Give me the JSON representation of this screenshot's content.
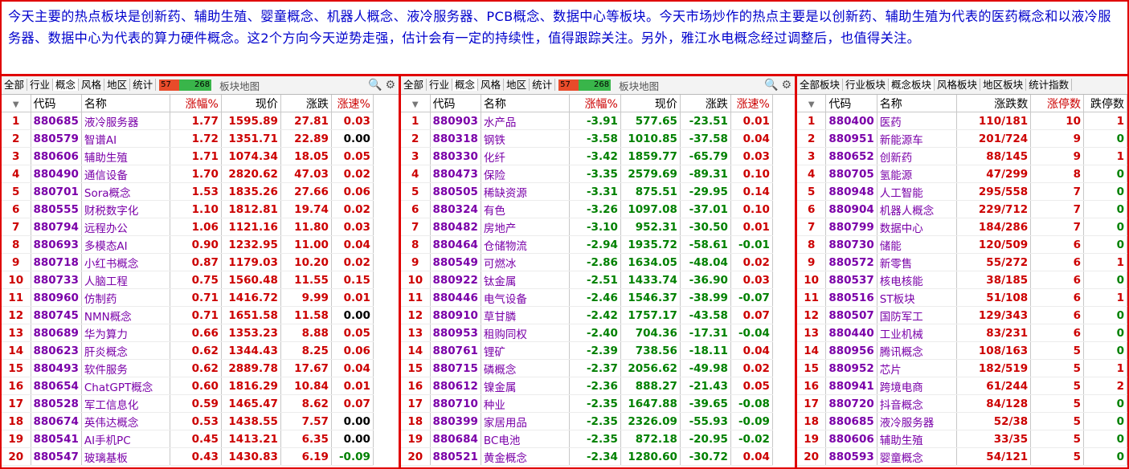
{
  "banner": {
    "text": "今天主要的热点板块是创新药、辅助生殖、婴童概念、机器人概念、液冷服务器、PCB概念、数据中心等板块。今天市场炒作的热点主要是以创新药、辅助生殖为代表的医药概念和以液冷服务器、数据中心为代表的算力硬件概念。这2个方向今天逆势走强，估计会有一定的持续性，值得跟踪关注。另外，雅江水电概念经过调整后，也值得关注。"
  },
  "panel1": {
    "tabs": [
      "全部",
      "行业",
      "概念",
      "风格",
      "地区",
      "统计"
    ],
    "active_tab": 2,
    "mini_red": "57",
    "mini_green": "268",
    "map_label": "板块地图",
    "headers": [
      "",
      "代码",
      "名称",
      "涨幅%",
      "现价",
      "涨跌",
      "涨速%"
    ],
    "rows": [
      [
        "1",
        "880685",
        "液冷服务器",
        "1.77",
        "1595.89",
        "27.81",
        "0.03"
      ],
      [
        "2",
        "880579",
        "智谱AI",
        "1.72",
        "1351.71",
        "22.89",
        "0.00"
      ],
      [
        "3",
        "880606",
        "辅助生殖",
        "1.71",
        "1074.34",
        "18.05",
        "0.05"
      ],
      [
        "4",
        "880490",
        "通信设备",
        "1.70",
        "2820.62",
        "47.03",
        "0.02"
      ],
      [
        "5",
        "880701",
        "Sora概念",
        "1.53",
        "1835.26",
        "27.66",
        "0.06"
      ],
      [
        "6",
        "880555",
        "财税数字化",
        "1.10",
        "1812.81",
        "19.74",
        "0.02"
      ],
      [
        "7",
        "880794",
        "远程办公",
        "1.06",
        "1121.16",
        "11.80",
        "0.03"
      ],
      [
        "8",
        "880693",
        "多模态AI",
        "0.90",
        "1232.95",
        "11.00",
        "0.04"
      ],
      [
        "9",
        "880718",
        "小红书概念",
        "0.87",
        "1179.03",
        "10.20",
        "0.02"
      ],
      [
        "10",
        "880733",
        "人脑工程",
        "0.75",
        "1560.48",
        "11.55",
        "0.15"
      ],
      [
        "11",
        "880960",
        "仿制药",
        "0.71",
        "1416.72",
        "9.99",
        "0.01"
      ],
      [
        "12",
        "880745",
        "NMN概念",
        "0.71",
        "1651.58",
        "11.58",
        "0.00"
      ],
      [
        "13",
        "880689",
        "华为算力",
        "0.66",
        "1353.23",
        "8.88",
        "0.05"
      ],
      [
        "14",
        "880623",
        "肝炎概念",
        "0.62",
        "1344.43",
        "8.25",
        "0.06"
      ],
      [
        "15",
        "880493",
        "软件服务",
        "0.62",
        "2889.78",
        "17.67",
        "0.04"
      ],
      [
        "16",
        "880654",
        "ChatGPT概念",
        "0.60",
        "1816.29",
        "10.84",
        "0.01"
      ],
      [
        "17",
        "880528",
        "军工信息化",
        "0.59",
        "1465.47",
        "8.62",
        "0.07"
      ],
      [
        "18",
        "880674",
        "英伟达概念",
        "0.53",
        "1438.55",
        "7.57",
        "0.00"
      ],
      [
        "19",
        "880541",
        "AI手机PC",
        "0.45",
        "1413.21",
        "6.35",
        "0.00"
      ],
      [
        "20",
        "880547",
        "玻璃基板",
        "0.43",
        "1430.83",
        "6.19",
        "-0.09"
      ]
    ]
  },
  "panel2": {
    "tabs": [
      "全部",
      "行业",
      "概念",
      "风格",
      "地区",
      "统计"
    ],
    "active_tab": 2,
    "mini_red": "57",
    "mini_green": "268",
    "map_label": "板块地图",
    "headers": [
      "",
      "代码",
      "名称",
      "涨幅%",
      "现价",
      "涨跌",
      "涨速%"
    ],
    "rows": [
      [
        "1",
        "880903",
        "水产品",
        "-3.91",
        "577.65",
        "-23.51",
        "0.01"
      ],
      [
        "2",
        "880318",
        "钢铁",
        "-3.58",
        "1010.85",
        "-37.58",
        "0.04"
      ],
      [
        "3",
        "880330",
        "化纤",
        "-3.42",
        "1859.77",
        "-65.79",
        "0.03"
      ],
      [
        "4",
        "880473",
        "保险",
        "-3.35",
        "2579.69",
        "-89.31",
        "0.10"
      ],
      [
        "5",
        "880505",
        "稀缺资源",
        "-3.31",
        "875.51",
        "-29.95",
        "0.14"
      ],
      [
        "6",
        "880324",
        "有色",
        "-3.26",
        "1097.08",
        "-37.01",
        "0.10"
      ],
      [
        "7",
        "880482",
        "房地产",
        "-3.10",
        "952.31",
        "-30.50",
        "0.01"
      ],
      [
        "8",
        "880464",
        "仓储物流",
        "-2.94",
        "1935.72",
        "-58.61",
        "-0.01"
      ],
      [
        "9",
        "880549",
        "可燃冰",
        "-2.86",
        "1634.05",
        "-48.04",
        "0.02"
      ],
      [
        "10",
        "880922",
        "钛金属",
        "-2.51",
        "1433.74",
        "-36.90",
        "0.03"
      ],
      [
        "11",
        "880446",
        "电气设备",
        "-2.46",
        "1546.37",
        "-38.99",
        "-0.07"
      ],
      [
        "12",
        "880910",
        "草甘膦",
        "-2.42",
        "1757.17",
        "-43.58",
        "0.07"
      ],
      [
        "13",
        "880953",
        "租购同权",
        "-2.40",
        "704.36",
        "-17.31",
        "-0.04"
      ],
      [
        "14",
        "880761",
        "锂矿",
        "-2.39",
        "738.56",
        "-18.11",
        "0.04"
      ],
      [
        "15",
        "880715",
        "磷概念",
        "-2.37",
        "2056.62",
        "-49.98",
        "0.02"
      ],
      [
        "16",
        "880612",
        "镍金属",
        "-2.36",
        "888.27",
        "-21.43",
        "0.05"
      ],
      [
        "17",
        "880710",
        "种业",
        "-2.35",
        "1647.88",
        "-39.65",
        "-0.08"
      ],
      [
        "18",
        "880399",
        "家居用品",
        "-2.35",
        "2326.09",
        "-55.93",
        "-0.09"
      ],
      [
        "19",
        "880684",
        "BC电池",
        "-2.35",
        "872.18",
        "-20.95",
        "-0.02"
      ],
      [
        "20",
        "880521",
        "黄金概念",
        "-2.34",
        "1280.60",
        "-30.72",
        "0.04"
      ]
    ]
  },
  "panel3": {
    "tabs": [
      "全部板块",
      "行业板块",
      "概念板块",
      "风格板块",
      "地区板块",
      "统计指数"
    ],
    "active_tab": 2,
    "headers": [
      "",
      "代码",
      "名称",
      "涨跌数",
      "涨停数",
      "跌停数"
    ],
    "rows": [
      [
        "1",
        "880400",
        "医药",
        "110/181",
        "10",
        "1"
      ],
      [
        "2",
        "880951",
        "新能源车",
        "201/724",
        "9",
        "0"
      ],
      [
        "3",
        "880652",
        "创新药",
        "88/145",
        "9",
        "1"
      ],
      [
        "4",
        "880705",
        "氢能源",
        "47/299",
        "8",
        "0"
      ],
      [
        "5",
        "880948",
        "人工智能",
        "295/558",
        "7",
        "0"
      ],
      [
        "6",
        "880904",
        "机器人概念",
        "229/712",
        "7",
        "0"
      ],
      [
        "7",
        "880799",
        "数据中心",
        "184/286",
        "7",
        "0"
      ],
      [
        "8",
        "880730",
        "储能",
        "120/509",
        "6",
        "0"
      ],
      [
        "9",
        "880572",
        "新零售",
        "55/272",
        "6",
        "1"
      ],
      [
        "10",
        "880537",
        "核电核能",
        "38/185",
        "6",
        "0"
      ],
      [
        "11",
        "880516",
        "ST板块",
        "51/108",
        "6",
        "1"
      ],
      [
        "12",
        "880507",
        "国防军工",
        "129/343",
        "6",
        "0"
      ],
      [
        "13",
        "880440",
        "工业机械",
        "83/231",
        "6",
        "0"
      ],
      [
        "14",
        "880956",
        "腾讯概念",
        "108/163",
        "5",
        "0"
      ],
      [
        "15",
        "880952",
        "芯片",
        "182/519",
        "5",
        "1"
      ],
      [
        "16",
        "880941",
        "跨境电商",
        "61/244",
        "5",
        "2"
      ],
      [
        "17",
        "880720",
        "抖音概念",
        "84/128",
        "5",
        "0"
      ],
      [
        "18",
        "880685",
        "液冷服务器",
        "52/38",
        "5",
        "0"
      ],
      [
        "19",
        "880606",
        "辅助生殖",
        "33/35",
        "5",
        "0"
      ],
      [
        "20",
        "880593",
        "婴童概念",
        "54/121",
        "5",
        "0"
      ]
    ]
  },
  "colors": {
    "border": "#e00000",
    "up": "#cc0000",
    "down": "#008000",
    "code": "#7a00a8",
    "banner_text": "#0000cc"
  }
}
